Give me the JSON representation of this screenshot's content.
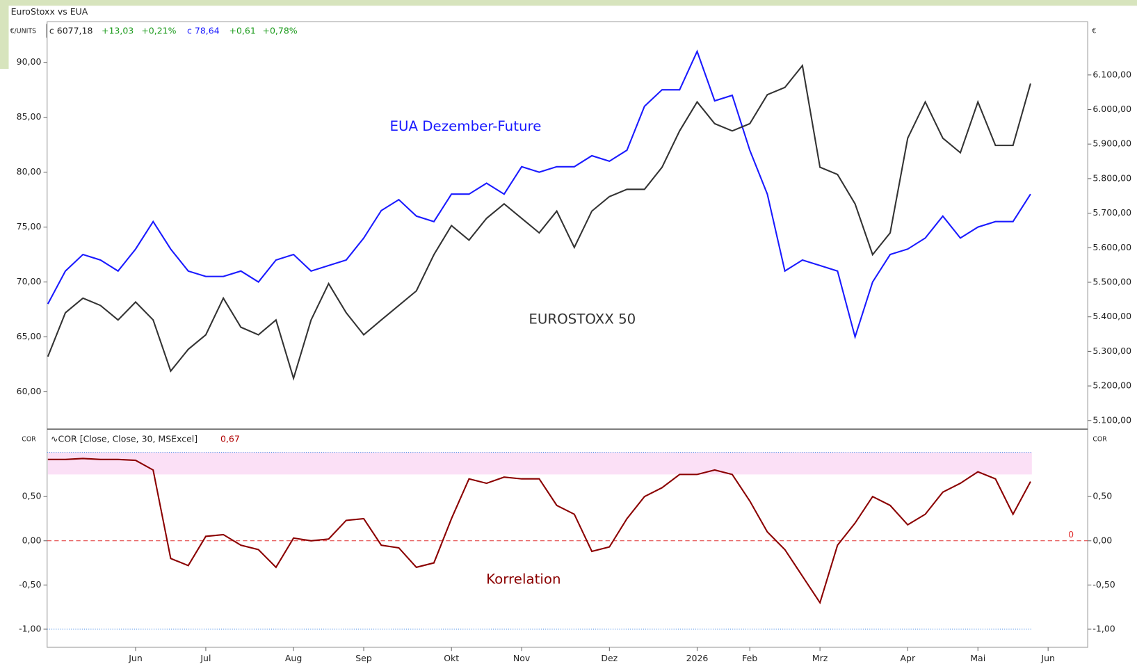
{
  "header": {
    "title": "EuroStoxx vs EUA",
    "unit_left": "€/UNITS",
    "unit_right": "€",
    "quote1": [
      "c 6077,18",
      "+13,03",
      "+0,21%"
    ],
    "quote2": [
      "c 78,64",
      "+0,61",
      "+0,78%"
    ]
  },
  "chart_data": [
    {
      "type": "line",
      "categories": [
        null,
        null,
        null,
        null,
        null,
        "Jun",
        null,
        null,
        null,
        "Jul",
        null,
        null,
        null,
        null,
        "Aug",
        null,
        null,
        null,
        "Sep",
        null,
        null,
        null,
        null,
        "Okt",
        null,
        null,
        null,
        "Nov",
        null,
        null,
        null,
        null,
        "Dez",
        null,
        null,
        null,
        null,
        "2026",
        null,
        null,
        "Feb",
        null,
        null,
        null,
        "Mrz",
        null,
        null,
        null,
        null,
        "Apr",
        null,
        null,
        null,
        "Mai",
        null,
        null,
        null,
        "Jun"
      ],
      "series": [
        {
          "name": "EUA Dezember-Future",
          "color": "#1a1aff",
          "values": [
            68,
            71,
            72.5,
            72,
            71,
            73,
            75.5,
            73,
            71,
            70.5,
            70.5,
            71,
            70,
            72,
            72.5,
            71,
            71.5,
            72,
            74,
            76.5,
            77.5,
            76,
            75.5,
            78,
            78,
            79,
            78,
            80.5,
            80,
            80.5,
            80.5,
            81.5,
            81,
            82,
            86,
            87.5,
            87.5,
            91,
            86.5,
            87,
            82,
            78,
            71,
            72,
            71.5,
            71,
            65,
            70,
            72.5,
            73,
            74,
            76,
            74,
            75,
            75.5,
            75.5,
            78,
            null
          ]
        },
        {
          "name": "EUROSTOXX 50",
          "color": "#333333",
          "axis": "y2",
          "values": [
            5285,
            5412,
            5454,
            5433,
            5391,
            5443,
            5391,
            5243,
            5306,
            5348,
            5454,
            5370,
            5348,
            5391,
            5222,
            5391,
            5496,
            5412,
            5348,
            5391,
            5433,
            5475,
            5580,
            5664,
            5622,
            5685,
            5727,
            5685,
            5643,
            5706,
            5601,
            5706,
            5748,
            5769,
            5769,
            5833,
            5938,
            6022,
            5959,
            5938,
            5959,
            6043,
            6064,
            6127,
            5833,
            5812,
            5727,
            5580,
            5643,
            5917,
            6022,
            5917,
            5875,
            6022,
            5896,
            5896,
            6075,
            null
          ]
        }
      ],
      "ylim": [
        56.6,
        93.7
      ],
      "yticks": [
        {
          "value": 60,
          "label": "60,00"
        },
        {
          "value": 65,
          "label": "65,00"
        },
        {
          "value": 70,
          "label": "70,00"
        },
        {
          "value": 75,
          "label": "75,00"
        },
        {
          "value": 80,
          "label": "80,00"
        },
        {
          "value": 85,
          "label": "85,00"
        },
        {
          "value": 90,
          "label": "90,00"
        }
      ],
      "y2lim": [
        5075,
        6254
      ],
      "y2ticks": [
        {
          "value": 5100,
          "label": "5.100,00"
        },
        {
          "value": 5200,
          "label": "5.200,00"
        },
        {
          "value": 5300,
          "label": "5.300,00"
        },
        {
          "value": 5400,
          "label": "5.400,00"
        },
        {
          "value": 5500,
          "label": "5.500,00"
        },
        {
          "value": 5600,
          "label": "5.600,00"
        },
        {
          "value": 5700,
          "label": "5.700,00"
        },
        {
          "value": 5800,
          "label": "5.800,00"
        },
        {
          "value": 5900,
          "label": "5.900,00"
        },
        {
          "value": 6000,
          "label": "6.000,00"
        },
        {
          "value": 6100,
          "label": "6.100,00"
        }
      ]
    },
    {
      "type": "line",
      "axis_label": "COR",
      "indicator": "∿COR  [Close, Close, 30, MSExcel]",
      "indicator_value": "0,67",
      "series": [
        {
          "name": "Korrelation",
          "color": "#8b0000",
          "values": [
            0.92,
            0.92,
            0.93,
            0.92,
            0.92,
            0.91,
            0.8,
            -0.2,
            -0.28,
            0.05,
            0.07,
            -0.05,
            -0.1,
            -0.3,
            0.03,
            0,
            0.02,
            0.23,
            0.25,
            -0.05,
            -0.08,
            -0.3,
            -0.25,
            0.25,
            0.7,
            0.65,
            0.72,
            0.7,
            0.7,
            0.4,
            0.3,
            -0.12,
            -0.07,
            0.25,
            0.5,
            0.6,
            0.75,
            0.75,
            0.8,
            0.75,
            0.45,
            0.1,
            -0.1,
            -0.4,
            -0.7,
            -0.05,
            0.2,
            0.5,
            0.4,
            0.18,
            0.3,
            0.55,
            0.65,
            0.78,
            0.7,
            0.3,
            0.67,
            null
          ]
        }
      ],
      "ylim": [
        -1.205,
        1.246
      ],
      "yticks": [
        {
          "value": -1,
          "label": "-1,00"
        },
        {
          "value": -0.5,
          "label": "-0,50"
        },
        {
          "value": 0,
          "label": "0,00"
        },
        {
          "value": 0.5,
          "label": "0,50"
        }
      ],
      "band": [
        0.75,
        1
      ],
      "bounds": [
        -1,
        1
      ],
      "zero_line": {
        "value": 0,
        "label": "0"
      }
    }
  ]
}
